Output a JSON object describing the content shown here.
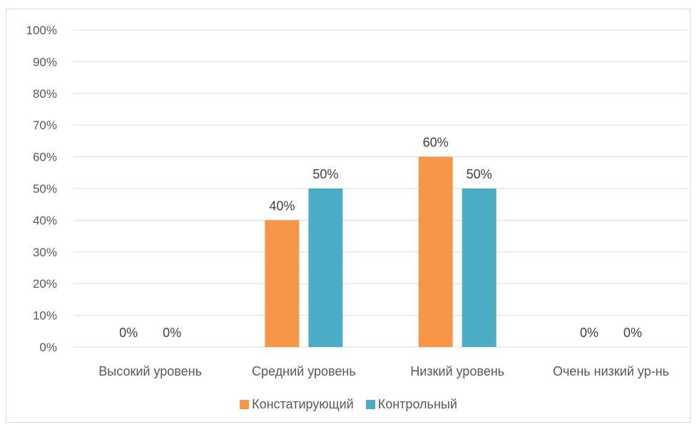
{
  "chart_data": {
    "type": "bar",
    "categories": [
      "Высокий уровень",
      "Средний уровень",
      "Низкий уровень",
      "Очень низкий ур-нь"
    ],
    "series": [
      {
        "name": "Констатирующий",
        "values": [
          0,
          40,
          60,
          0
        ],
        "color": "#F79646"
      },
      {
        "name": "Контрольный",
        "values": [
          0,
          50,
          50,
          0
        ],
        "color": "#4BACC6"
      }
    ],
    "data_labels": [
      [
        "0%",
        "40%",
        "60%",
        "0%"
      ],
      [
        "0%",
        "50%",
        "50%",
        "0%"
      ]
    ],
    "ylim": [
      0,
      100
    ],
    "yticks": [
      "0%",
      "10%",
      "20%",
      "30%",
      "40%",
      "50%",
      "60%",
      "70%",
      "80%",
      "90%",
      "100%"
    ],
    "grid": true,
    "legend_position": "bottom"
  }
}
